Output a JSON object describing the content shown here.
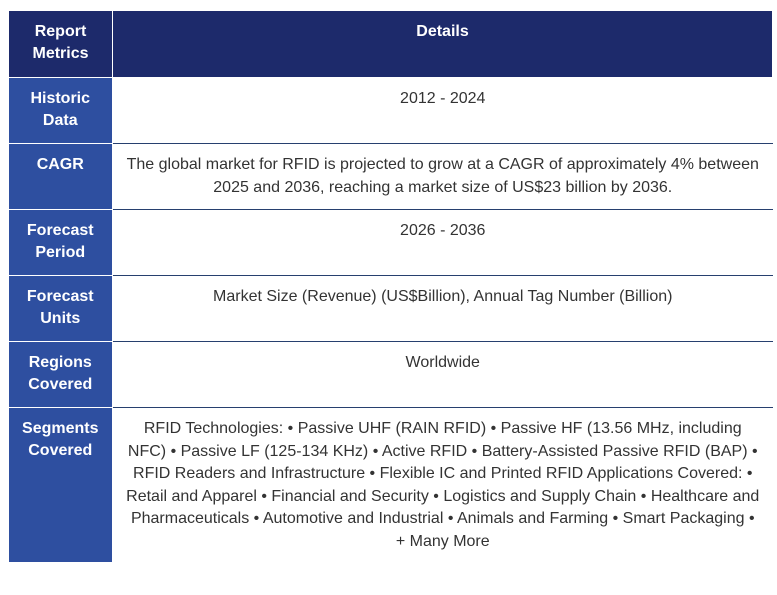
{
  "table": {
    "header": {
      "metric_label": "Report Metrics",
      "details_label": "Details"
    },
    "rows": [
      {
        "metric": "Historic Data",
        "details": "2012 - 2024"
      },
      {
        "metric": "CAGR",
        "details": "The global market for RFID is projected to grow at a CAGR of approximately 4% between 2025 and 2036, reaching a market size of US$23 billion by 2036."
      },
      {
        "metric": "Forecast Period",
        "details": "2026 - 2036"
      },
      {
        "metric": "Forecast Units",
        "details": "Market Size (Revenue) (US$Billion), Annual Tag Number (Billion)"
      },
      {
        "metric": "Regions Covered",
        "details": "Worldwide"
      },
      {
        "metric": "Segments Covered",
        "details": "RFID Technologies: • Passive UHF (RAIN RFID) • Passive HF (13.56 MHz, including NFC) • Passive LF (125-134 KHz) • Active RFID • Battery-Assisted Passive RFID (BAP) • RFID Readers and Infrastructure • Flexible IC and Printed RFID Applications Covered: • Retail and Apparel • Financial and Security • Logistics and Supply Chain • Healthcare and Pharmaceuticals • Automotive and Industrial • Animals and Farming • Smart Packaging • + Many More"
      }
    ]
  },
  "colors": {
    "header_bg": "#1d2a6b",
    "metric_bg": "#2e4fa0",
    "header_text": "#ffffff",
    "detail_text": "#333333",
    "row_divider": "#27406f"
  }
}
